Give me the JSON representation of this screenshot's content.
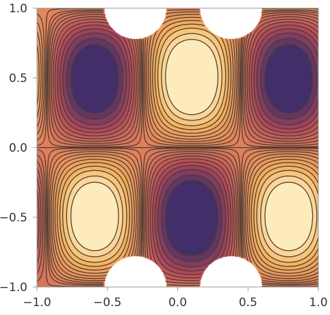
{
  "chart_data": {
    "type": "contour",
    "title": "",
    "xlabel": "",
    "ylabel": "",
    "xlim": [
      -1.0,
      1.0
    ],
    "ylim": [
      -1.0,
      1.0
    ],
    "x_ticks": [
      {
        "value": -1.0,
        "label": "−1.0"
      },
      {
        "value": -0.5,
        "label": "−0.5"
      },
      {
        "value": 0.0,
        "label": "0.0"
      },
      {
        "value": 0.5,
        "label": "0.5"
      },
      {
        "value": 1.0,
        "label": "1.0"
      }
    ],
    "y_ticks": [
      {
        "value": -1.0,
        "label": "−1.0"
      },
      {
        "value": -0.5,
        "label": "−0.5"
      },
      {
        "value": 0.0,
        "label": "0.0"
      },
      {
        "value": 0.5,
        "label": "0.5"
      },
      {
        "value": 1.0,
        "label": "1.0"
      }
    ],
    "grid": false,
    "legend": "none",
    "colormap": "sunset",
    "colors": {
      "low": "#2e2a6b",
      "mid_low": "#b2485a",
      "mid": "#e07f5b",
      "mid_high": "#f4b35e",
      "high": "#fff7cf",
      "contour_line": "#4a3b33",
      "frame": "#9a9a9a"
    },
    "contour_levels": [
      -1.0,
      -0.85,
      -0.7,
      -0.58,
      -0.47,
      -0.37,
      -0.28,
      -0.2,
      -0.13,
      -0.07,
      -0.02,
      0.02,
      0.07,
      0.13,
      0.2,
      0.28,
      0.37,
      0.47,
      0.58,
      0.7,
      0.85,
      1.0
    ],
    "clip_range": [
      -1.2,
      1.2
    ],
    "undefined_regions": [
      {
        "center": [
          -0.3,
          1.0
        ],
        "radius": 0.22,
        "description": "white blank region at top"
      },
      {
        "center": [
          0.38,
          1.0
        ],
        "radius": 0.22,
        "description": "white blank region at top"
      },
      {
        "center": [
          -0.3,
          -1.0
        ],
        "radius": 0.22,
        "description": "white blank region at bottom"
      },
      {
        "center": [
          0.38,
          -1.0
        ],
        "radius": 0.22,
        "description": "white blank region at bottom"
      }
    ]
  }
}
